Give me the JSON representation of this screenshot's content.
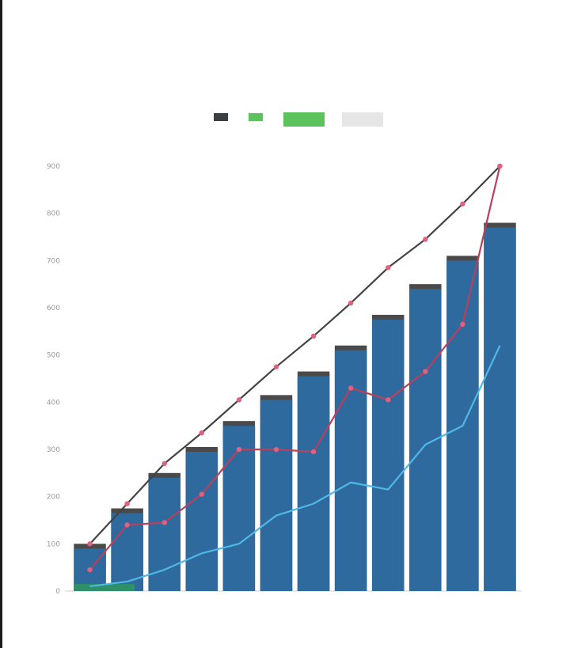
{
  "header": {
    "title": "",
    "subtitle": ""
  },
  "side_table": {
    "headers": [
      "",
      "",
      "",
      ""
    ],
    "rows": [
      [
        "",
        "",
        "",
        ""
      ],
      [
        "",
        "",
        "",
        ""
      ],
      [
        "",
        "",
        "",
        ""
      ],
      [
        "",
        "",
        "",
        ""
      ]
    ]
  },
  "legend": {
    "items": [
      {
        "label": "",
        "sub": "",
        "color": "#3a3f44"
      },
      {
        "label": "",
        "sub": "",
        "color": "#5cc25c"
      }
    ],
    "swatch_colors": [
      "#5cc25c",
      "#e6e6e6"
    ]
  },
  "chart_data": {
    "type": "bar",
    "title": "",
    "xlabel": "",
    "ylabel": "",
    "ylim": [
      0,
      900
    ],
    "yticks": [
      0,
      100,
      200,
      300,
      400,
      500,
      600,
      700,
      800,
      900
    ],
    "categories": [
      "",
      "",
      "",
      "",
      "",
      "",
      "",
      "",
      "",
      "",
      "",
      ""
    ],
    "series": [
      {
        "kind": "bar",
        "color": "#2e6a9e",
        "shadow": "#4a4a4a",
        "values": [
          90,
          165,
          240,
          295,
          350,
          405,
          455,
          510,
          575,
          640,
          700,
          770
        ]
      },
      {
        "kind": "bar-overlay",
        "color": "#2f8f68",
        "values": [
          15,
          0,
          0,
          0,
          0,
          0,
          0,
          0,
          0,
          0,
          0,
          0
        ]
      },
      {
        "kind": "line",
        "color": "#444444",
        "marker": "#e0607e",
        "values": [
          100,
          185,
          270,
          335,
          405,
          475,
          540,
          610,
          685,
          745,
          820,
          900
        ]
      },
      {
        "kind": "line",
        "color": "#b9405c",
        "marker": "#e0607e",
        "values": [
          45,
          140,
          145,
          205,
          300,
          300,
          295,
          430,
          405,
          465,
          565,
          900
        ]
      },
      {
        "kind": "line",
        "color": "#4fb8e8",
        "values": [
          10,
          20,
          45,
          80,
          100,
          160,
          185,
          230,
          215,
          310,
          350,
          520
        ]
      }
    ],
    "annotations": [
      "",
      "",
      "",
      "",
      "",
      "",
      "",
      "",
      "",
      "",
      "",
      ""
    ],
    "grid": false,
    "legend_position": "top-right"
  }
}
